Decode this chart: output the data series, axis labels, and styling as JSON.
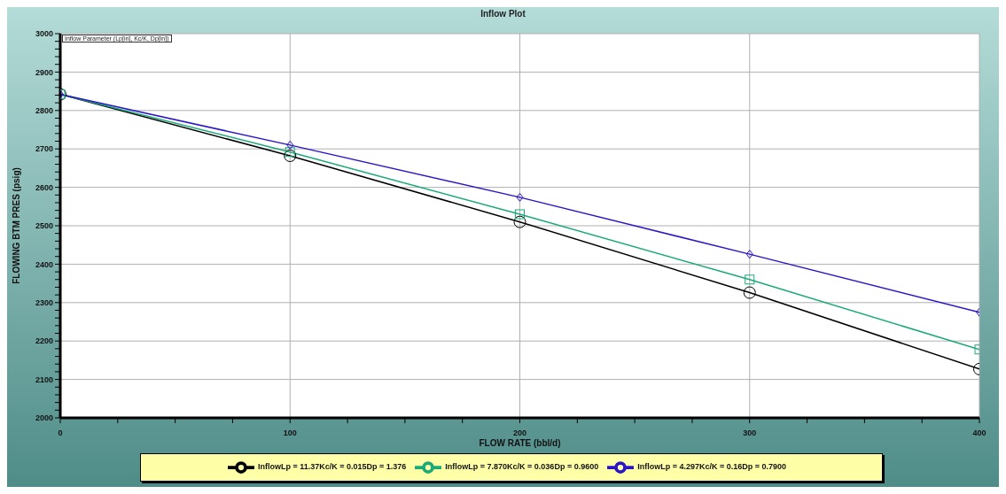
{
  "chart_data": {
    "type": "line",
    "title": "Inflow Plot",
    "xlabel": "FLOW RATE      (bbl/d)",
    "ylabel": "FLOWING BTM PRES      (psig)",
    "annotations": [
      "Inflow Parameter (Lp[in],  Kc/K,  Dp[in])"
    ],
    "x": [
      0,
      100,
      200,
      300,
      400
    ],
    "series": [
      {
        "name": "InflowLp = 11.37Kc/K = 0.015Dp = 1.376",
        "color": "#000000",
        "marker": "circle",
        "values": [
          2842,
          2682,
          2510,
          2326,
          2127
        ]
      },
      {
        "name": "InflowLp = 7.870Kc/K = 0.036Dp = 0.9600",
        "color": "#1aaa78",
        "marker": "square",
        "values": [
          2842,
          2692,
          2530,
          2360,
          2178
        ]
      },
      {
        "name": "InflowLp = 4.297Kc/K = 0.16Dp = 0.7900",
        "color": "#2a16c8",
        "marker": "diamond",
        "values": [
          2842,
          2710,
          2574,
          2426,
          2275
        ]
      }
    ],
    "xlim": [
      0,
      400
    ],
    "xticks": [
      0,
      {
        "value": 25,
        "label": null
      },
      {
        "value": 50,
        "label": null
      },
      {
        "value": 75,
        "label": null
      },
      100,
      {
        "value": 125,
        "label": null
      },
      {
        "value": 150,
        "label": null
      },
      {
        "value": 175,
        "label": null
      },
      200,
      {
        "value": 225,
        "label": null
      },
      {
        "value": 250,
        "label": null
      },
      {
        "value": 275,
        "label": null
      },
      300,
      {
        "value": 325,
        "label": null
      },
      {
        "value": 350,
        "label": null
      },
      {
        "value": 375,
        "label": null
      },
      400
    ],
    "ylim": [
      2000,
      3000
    ],
    "yticks": [
      2000,
      {
        "value": 2020,
        "label": null
      },
      {
        "value": 2040,
        "label": null
      },
      {
        "value": 2060,
        "label": null
      },
      {
        "value": 2080,
        "label": null
      },
      2100,
      {
        "value": 2120,
        "label": null
      },
      {
        "value": 2140,
        "label": null
      },
      {
        "value": 2160,
        "label": null
      },
      {
        "value": 2180,
        "label": null
      },
      2200,
      {
        "value": 2220,
        "label": null
      },
      {
        "value": 2240,
        "label": null
      },
      {
        "value": 2260,
        "label": null
      },
      {
        "value": 2280,
        "label": null
      },
      2300,
      {
        "value": 2320,
        "label": null
      },
      {
        "value": 2340,
        "label": null
      },
      {
        "value": 2360,
        "label": null
      },
      {
        "value": 2380,
        "label": null
      },
      2400,
      {
        "value": 2420,
        "label": null
      },
      {
        "value": 2440,
        "label": null
      },
      {
        "value": 2460,
        "label": null
      },
      {
        "value": 2480,
        "label": null
      },
      2500,
      {
        "value": 2520,
        "label": null
      },
      {
        "value": 2540,
        "label": null
      },
      {
        "value": 2560,
        "label": null
      },
      {
        "value": 2580,
        "label": null
      },
      2600,
      {
        "value": 2620,
        "label": null
      },
      {
        "value": 2640,
        "label": null
      },
      {
        "value": 2660,
        "label": null
      },
      {
        "value": 2680,
        "label": null
      },
      2700,
      {
        "value": 2720,
        "label": null
      },
      {
        "value": 2740,
        "label": null
      },
      {
        "value": 2760,
        "label": null
      },
      {
        "value": 2780,
        "label": null
      },
      2800,
      {
        "value": 2820,
        "label": null
      },
      {
        "value": 2840,
        "label": null
      },
      {
        "value": 2860,
        "label": null
      },
      {
        "value": 2880,
        "label": null
      },
      2900,
      {
        "value": 2920,
        "label": null
      },
      {
        "value": 2940,
        "label": null
      },
      {
        "value": 2960,
        "label": null
      },
      {
        "value": 2980,
        "label": null
      },
      3000
    ],
    "grid": true,
    "legend": "bottom",
    "line_style": "solid"
  }
}
